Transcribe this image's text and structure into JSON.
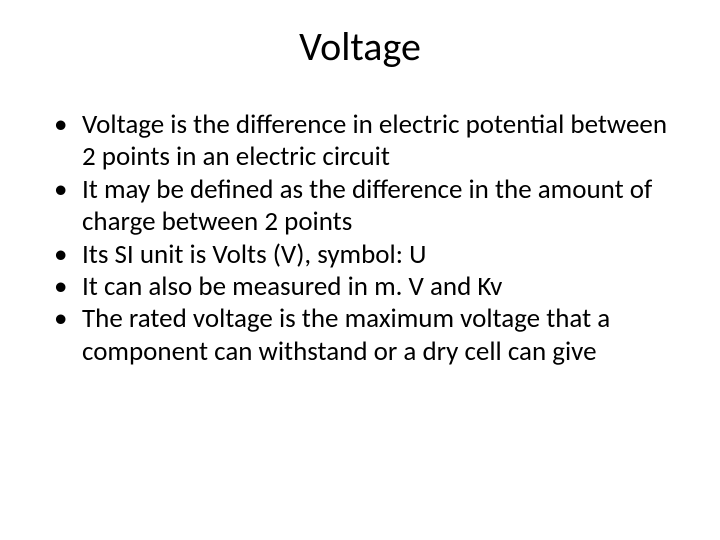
{
  "slide": {
    "title": "Voltage",
    "bullets": [
      "Voltage is the difference in electric potential between 2 points in an electric circuit",
      "It may be defined as the difference in the amount of charge between 2 points",
      "Its SI unit is Volts (V), symbol: U",
      "It can also be measured in m. V and Kv",
      "The rated voltage is the maximum voltage that a component can withstand or a dry cell can give"
    ]
  },
  "style": {
    "background_color": "#ffffff",
    "text_color": "#000000",
    "title_fontsize": 40,
    "body_fontsize": 27,
    "font_family": "Calibri"
  }
}
